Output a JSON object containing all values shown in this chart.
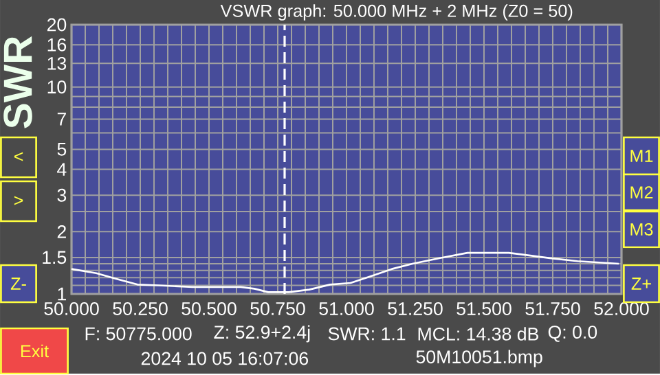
{
  "chart_data": {
    "type": "line",
    "title": "VSWR graph: 50.000 MHz + 2 MHz (Z0 = 50)",
    "ylabel": "SWR",
    "x": [
      50.0,
      50.09,
      50.165,
      50.24,
      50.315,
      50.44,
      50.615,
      50.665,
      50.715,
      50.79,
      50.865,
      50.94,
      51.015,
      51.09,
      51.165,
      51.24,
      51.34,
      51.44,
      51.59,
      51.74,
      51.84,
      51.99
    ],
    "series": [
      {
        "color": "#ffffff",
        "values": [
          1.32,
          1.26,
          1.18,
          1.11,
          1.1,
          1.08,
          1.08,
          1.06,
          1.02,
          1.02,
          1.05,
          1.11,
          1.13,
          1.22,
          1.32,
          1.4,
          1.49,
          1.58,
          1.58,
          1.49,
          1.44,
          1.4
        ]
      }
    ],
    "xlim": [
      50.0,
      52.0
    ],
    "ylim": [
      1,
      20
    ],
    "log": "y",
    "grid": true,
    "line_style": "solid",
    "xticks": [
      {
        "value": 50.0,
        "label": "50.000"
      },
      {
        "value": 50.25,
        "label": "50.250"
      },
      {
        "value": 50.5,
        "label": "50.500"
      },
      {
        "value": 50.75,
        "label": "50.750"
      },
      {
        "value": 51.0,
        "label": "51.000"
      },
      {
        "value": 51.25,
        "label": "51.250"
      },
      {
        "value": 51.5,
        "label": "51.500"
      },
      {
        "value": 51.75,
        "label": "51.750"
      },
      {
        "value": 52.0,
        "label": "52.000"
      },
      {
        "value": 50.05,
        "label": null
      },
      {
        "value": 50.1,
        "label": null
      },
      {
        "value": 50.15,
        "label": null
      },
      {
        "value": 50.2,
        "label": null
      },
      {
        "value": 50.3,
        "label": null
      },
      {
        "value": 50.35,
        "label": null
      },
      {
        "value": 50.4,
        "label": null
      },
      {
        "value": 50.45,
        "label": null
      },
      {
        "value": 50.55,
        "label": null
      },
      {
        "value": 50.6,
        "label": null
      },
      {
        "value": 50.65,
        "label": null
      },
      {
        "value": 50.7,
        "label": null
      },
      {
        "value": 50.8,
        "label": null
      },
      {
        "value": 50.85,
        "label": null
      },
      {
        "value": 50.9,
        "label": null
      },
      {
        "value": 50.95,
        "label": null
      },
      {
        "value": 51.05,
        "label": null
      },
      {
        "value": 51.1,
        "label": null
      },
      {
        "value": 51.15,
        "label": null
      },
      {
        "value": 51.2,
        "label": null
      },
      {
        "value": 51.3,
        "label": null
      },
      {
        "value": 51.35,
        "label": null
      },
      {
        "value": 51.4,
        "label": null
      },
      {
        "value": 51.45,
        "label": null
      },
      {
        "value": 51.55,
        "label": null
      },
      {
        "value": 51.6,
        "label": null
      },
      {
        "value": 51.65,
        "label": null
      },
      {
        "value": 51.7,
        "label": null
      },
      {
        "value": 51.8,
        "label": null
      },
      {
        "value": 51.85,
        "label": null
      },
      {
        "value": 51.9,
        "label": null
      },
      {
        "value": 51.95,
        "label": null
      }
    ],
    "yticks": [
      1,
      1.5,
      2,
      3,
      4,
      5,
      7,
      10,
      13,
      16,
      20,
      {
        "value": 1.1,
        "label": null
      },
      {
        "value": 1.2,
        "label": null
      },
      {
        "value": 1.3,
        "label": null
      },
      {
        "value": 1.4,
        "label": null
      },
      {
        "value": 2.5,
        "label": null
      },
      {
        "value": 6,
        "label": null
      },
      {
        "value": 8,
        "label": null
      },
      {
        "value": 9,
        "label": null
      }
    ],
    "ref_lines": [
      {
        "axis": "x",
        "value": 50.775,
        "color": "#ffffff",
        "line_style": "dashed"
      }
    ],
    "annotations": [
      "<",
      ">",
      "Z-",
      "M1",
      "M2",
      "M3",
      "Z+",
      "Exit",
      "F: 50775.000",
      "Z: 52.9+2.4j",
      "SWR: 1.1",
      "MCL: 14.38 dB",
      "Q: 0.0",
      "2024 10 05 16:07:06",
      "50M10051.bmp"
    ]
  }
}
